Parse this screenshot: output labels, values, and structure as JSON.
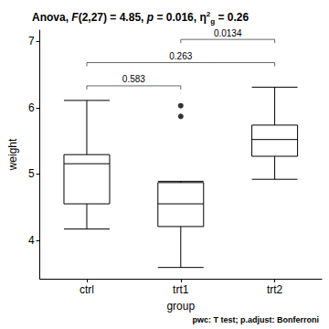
{
  "chart_data": {
    "type": "boxplot",
    "title": [
      "Anova, ",
      {
        "text": "F",
        "format": "italic"
      },
      "(2,27) = 4.85, ",
      {
        "text": "p",
        "format": "italic"
      },
      " = 0.016, ",
      {
        "text": "η",
        "format": "plain"
      },
      {
        "text": "2",
        "format": "sup"
      },
      {
        "text": "g",
        "format": "sub"
      },
      " = 0.26"
    ],
    "caption": [
      "pwc: ",
      {
        "text": "T test",
        "format": "bold"
      },
      "; p.adjust: ",
      {
        "text": "Bonferroni",
        "format": "bold"
      }
    ],
    "x_label": "group",
    "y_label": "weight",
    "categories": [
      "ctrl",
      "trt1",
      "trt2"
    ],
    "values": [
      [
        4.17,
        4.55,
        5.155,
        5.2925,
        6.11
      ],
      [
        3.59,
        4.2075,
        4.55,
        4.87,
        4.89
      ],
      [
        4.92,
        5.2675,
        5.52,
        5.7375,
        6.31
      ]
    ],
    "outliers": [
      [],
      [
        5.87,
        6.03
      ],
      []
    ],
    "comparisons": [
      {
        "groups": [
          "ctrl",
          "trt1"
        ],
        "p": 0.583,
        "y": 6.33
      },
      {
        "groups": [
          "ctrl",
          "trt2"
        ],
        "p": 0.263,
        "y": 6.68
      },
      {
        "groups": [
          "trt1",
          "trt2"
        ],
        "p": 0.0134,
        "y": 7.03
      }
    ],
    "color": "#000000",
    "ylim": [
      3.42,
      7.17
    ],
    "yticks": [
      4,
      5,
      6,
      7
    ],
    "grid": false
  }
}
